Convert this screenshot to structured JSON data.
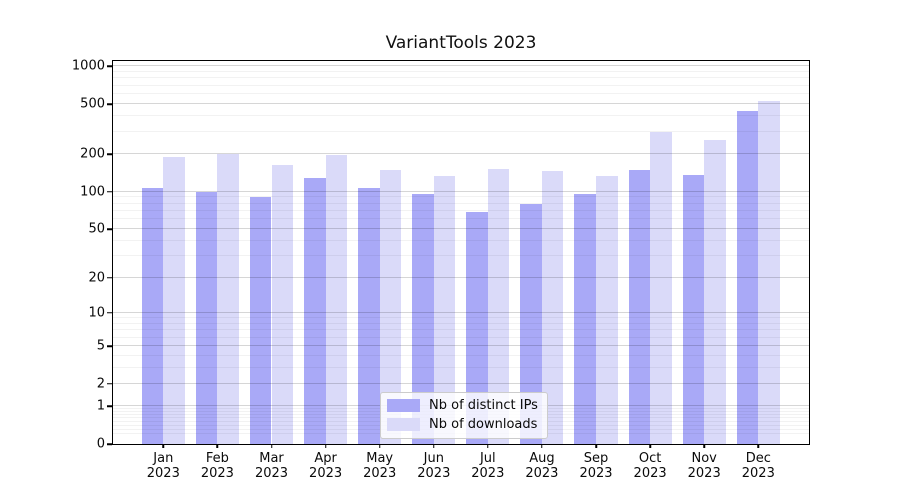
{
  "chart_data": {
    "type": "bar",
    "title": "VariantTools 2023",
    "categories": [
      "Jan",
      "Feb",
      "Mar",
      "Apr",
      "May",
      "Jun",
      "Jul",
      "Aug",
      "Sep",
      "Oct",
      "Nov",
      "Dec"
    ],
    "category_year": "2023",
    "series": [
      {
        "name": "Nb of distinct IPs",
        "color": "#a9a9f7",
        "values": [
          107,
          100,
          91,
          128,
          108,
          95,
          69,
          79,
          95,
          150,
          137,
          437
        ]
      },
      {
        "name": "Nb of downloads",
        "color": "#dadaf9",
        "values": [
          188,
          200,
          165,
          196,
          148,
          133,
          152,
          146,
          134,
          300,
          258,
          525
        ]
      }
    ],
    "xlabel": "",
    "ylabel": "",
    "yscale": "log1p",
    "ylim": [
      0,
      1100
    ],
    "y_major_ticks": [
      1000,
      500,
      200,
      100,
      50,
      20,
      10,
      5,
      2,
      1,
      0
    ],
    "y_minor_ticks": [
      0.2,
      0.3,
      0.4,
      0.5,
      0.6,
      0.7,
      0.8,
      0.9,
      3,
      4,
      6,
      7,
      8,
      9,
      30,
      40,
      60,
      70,
      80,
      90,
      300,
      400,
      600,
      700,
      800,
      900
    ],
    "grid": "both",
    "legend_position": "lower-center"
  },
  "colors": {
    "background": "#ffffff",
    "axis": "#000000",
    "grid_major": "rgba(0,0,0,0.16)",
    "grid_minor": "rgba(0,0,0,0.05)",
    "text": "#0a0a0a"
  }
}
